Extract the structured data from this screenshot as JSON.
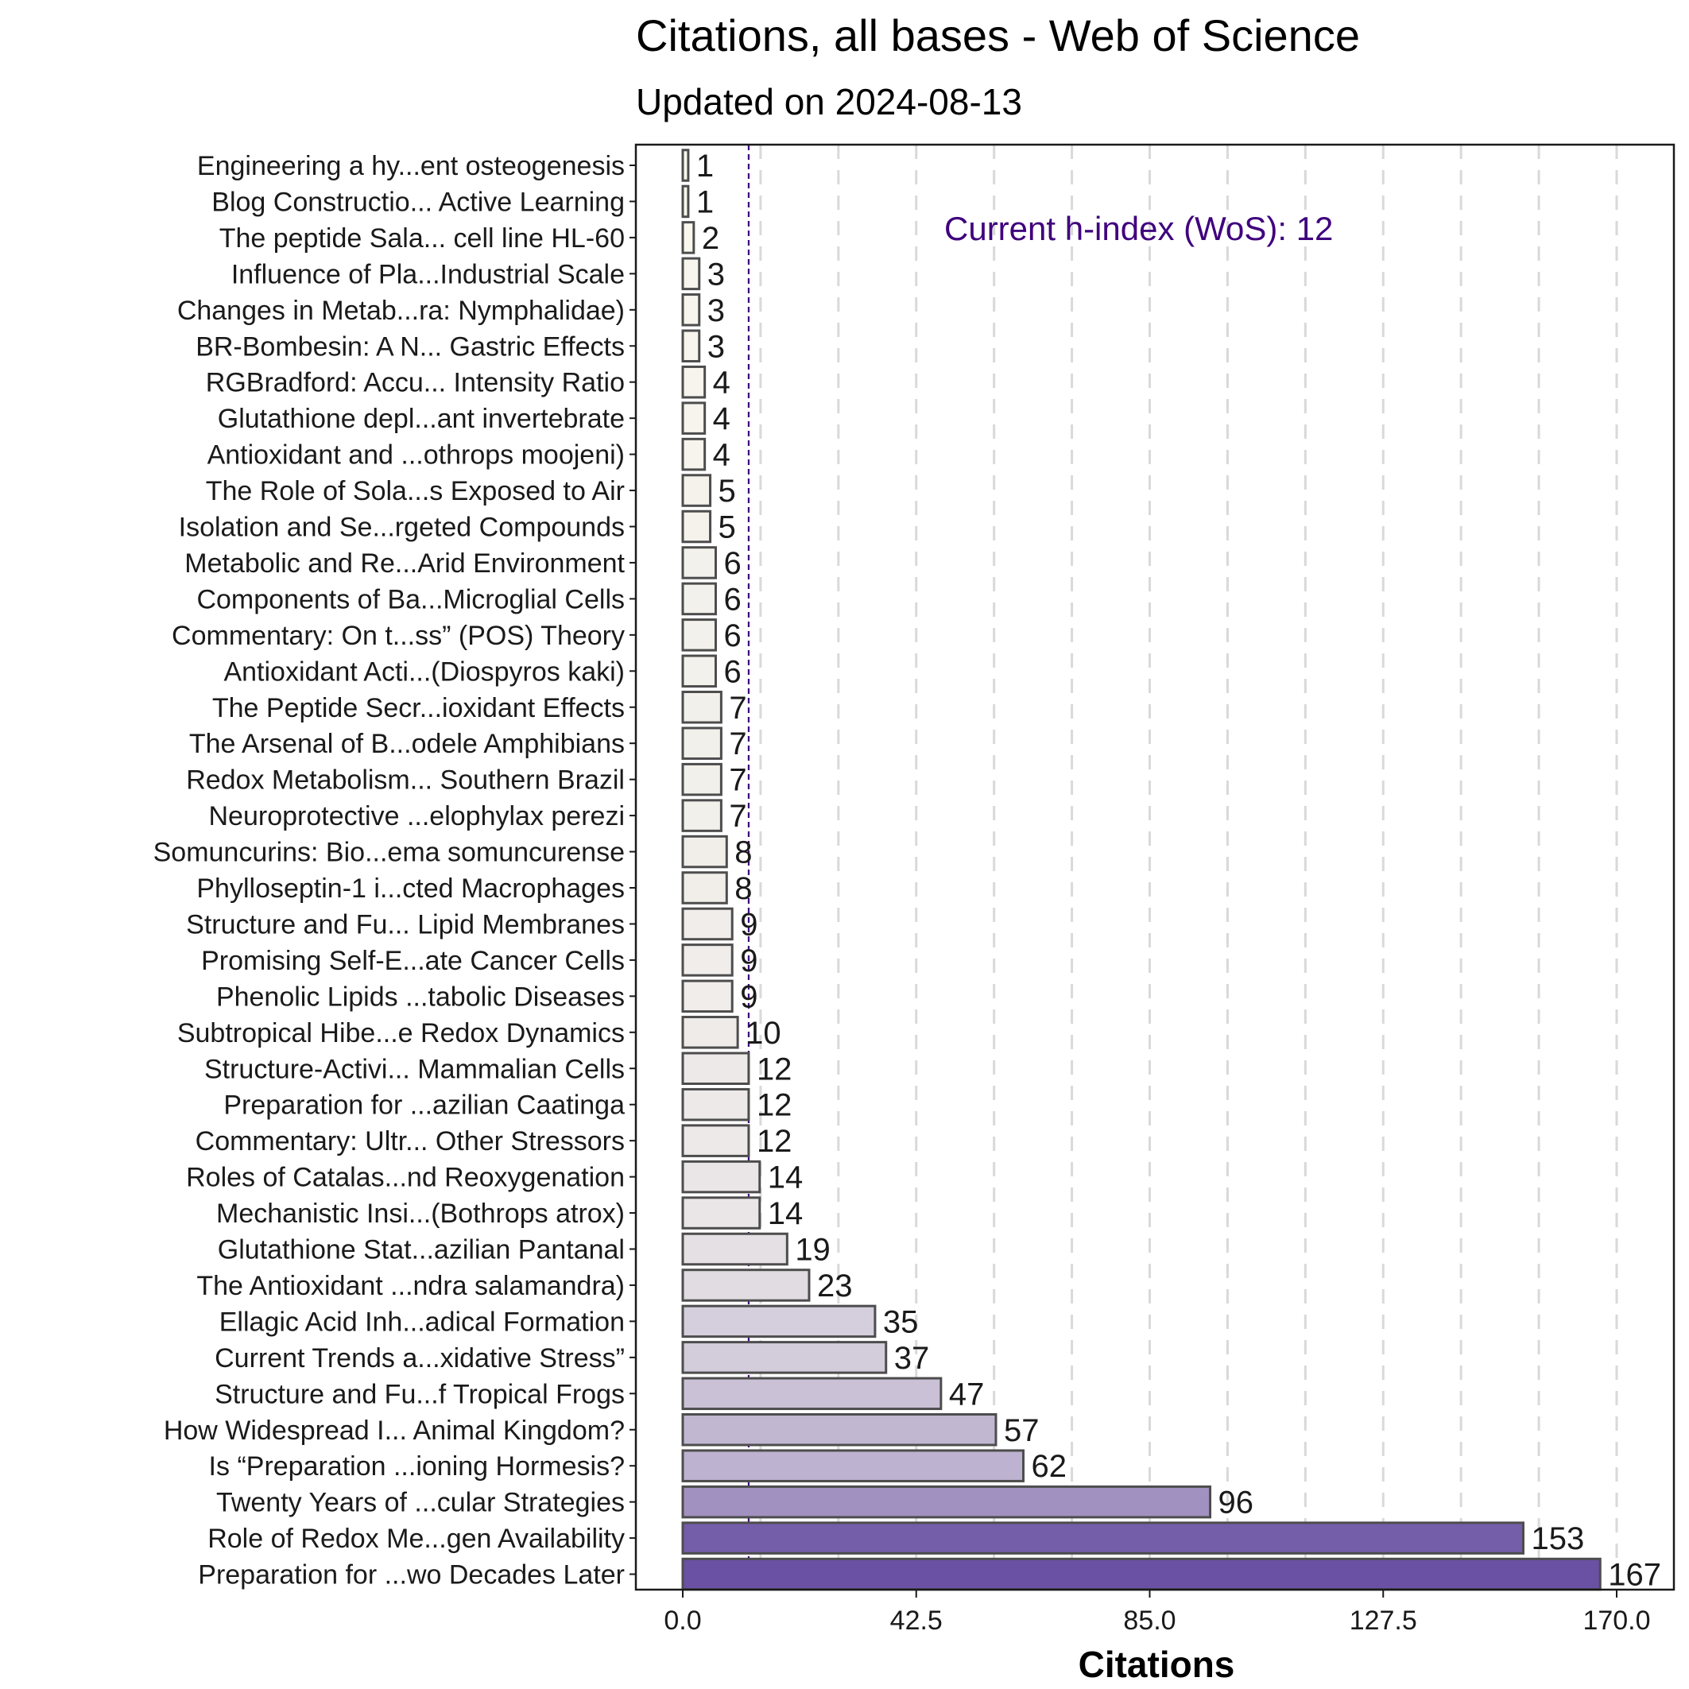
{
  "chart_data": {
    "type": "bar",
    "orientation": "horizontal",
    "title": "Citations, all bases - Web of Science",
    "subtitle": "Updated on 2024-08-13",
    "xlabel": "Citations",
    "ylabel": "",
    "xlim": [
      0,
      170
    ],
    "xticks": [
      "0.0",
      "42.5",
      "85.0",
      "127.5",
      "170.0"
    ],
    "grid": "vertical dashed",
    "h_index": 12,
    "annotation": "Current h-index (WoS): 12",
    "colors": {
      "low": "#FCFBF0",
      "high": "#6A51A3",
      "annotation": "#3F007D",
      "bar_edge": "#4D4D4D",
      "grid": "#D9D9D9"
    },
    "categories": [
      "Engineering a hy...ent osteogenesis",
      "Blog Constructio... Active Learning",
      "The peptide Sala... cell line HL-60",
      "Influence of Pla...Industrial Scale",
      "Changes in Metab...ra: Nymphalidae)",
      "BR-Bombesin: A N... Gastric Effects",
      "RGBradford: Accu... Intensity Ratio",
      "Glutathione depl...ant invertebrate",
      "Antioxidant and ...othrops moojeni)",
      "The Role of Sola...s Exposed to Air",
      "Isolation and Se...rgeted Compounds",
      "Metabolic and Re...Arid Environment",
      "Components of Ba...Microglial Cells",
      "Commentary: On t...ss” (POS) Theory",
      "Antioxidant Acti...(Diospyros kaki)",
      "The Peptide Secr...ioxidant Effects",
      "The Arsenal of B...odele Amphibians",
      "Redox Metabolism... Southern Brazil",
      "Neuroprotective ...elophylax perezi",
      "Somuncurins: Bio...ema somuncurense",
      "Phylloseptin-1 i...cted Macrophages",
      "Structure and Fu... Lipid Membranes",
      "Promising Self-E...ate Cancer Cells",
      "Phenolic Lipids ...tabolic Diseases",
      "Subtropical Hibe...e Redox Dynamics",
      "Structure-Activi... Mammalian Cells",
      "Preparation for ...azilian Caatinga",
      "Commentary: Ultr... Other Stressors",
      "Roles of Catalas...nd Reoxygenation",
      "Mechanistic Insi...(Bothrops atrox)",
      "Glutathione Stat...azilian Pantanal",
      "The Antioxidant ...ndra salamandra)",
      "Ellagic Acid Inh...adical Formation",
      "Current Trends a...xidative Stress”",
      "Structure and Fu...f Tropical Frogs",
      "How Widespread I... Animal Kingdom?",
      "Is “Preparation ...ioning Hormesis?",
      "Twenty Years of ...cular Strategies",
      "Role of Redox Me...gen Availability",
      "Preparation for ...wo Decades Later"
    ],
    "values": [
      1,
      1,
      2,
      3,
      3,
      3,
      4,
      4,
      4,
      5,
      5,
      6,
      6,
      6,
      6,
      7,
      7,
      7,
      7,
      8,
      8,
      9,
      9,
      9,
      10,
      12,
      12,
      12,
      14,
      14,
      19,
      23,
      35,
      37,
      47,
      57,
      62,
      96,
      153,
      167
    ]
  }
}
